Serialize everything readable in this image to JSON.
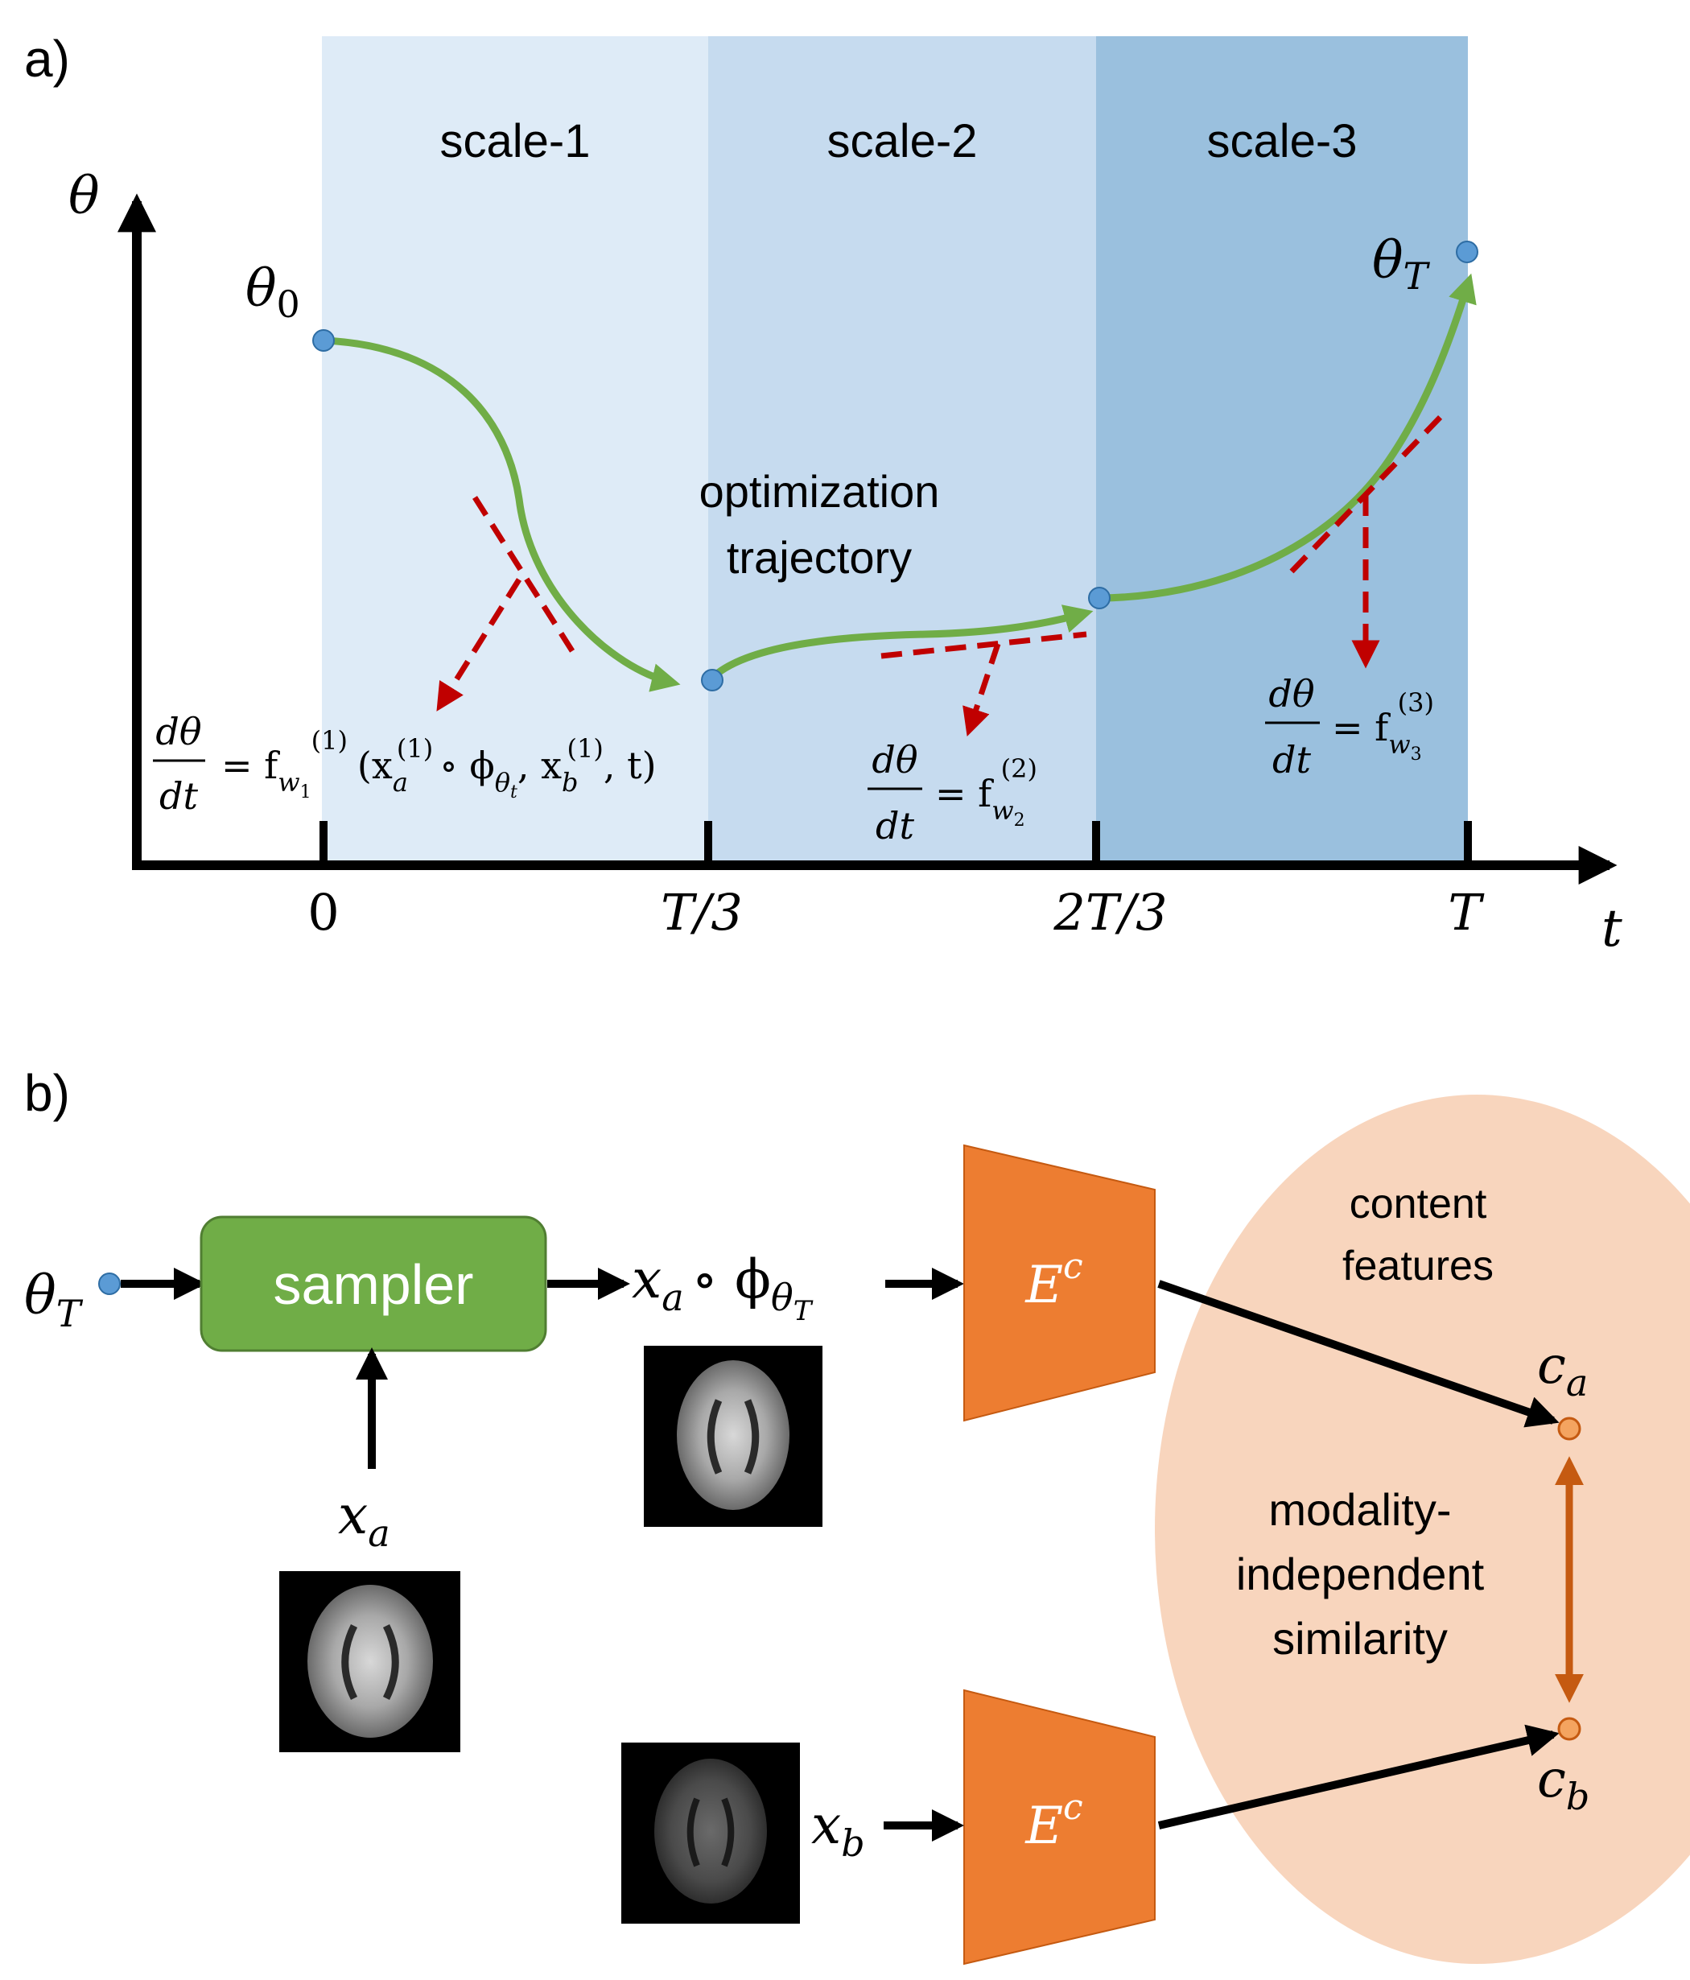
{
  "panel_a": {
    "label": "a)",
    "scales": [
      "scale-1",
      "scale-2",
      "scale-3"
    ],
    "y_axis_label": "θ",
    "x_axis_label": "t",
    "ticks": [
      "0",
      "T/3",
      "2T/3",
      "T"
    ],
    "theta0": {
      "base": "θ",
      "sub": "0"
    },
    "thetaT": {
      "base": "θ",
      "sub": "T"
    },
    "trajectory_label": [
      "optimization",
      "trajectory"
    ],
    "eq1": {
      "num": "dθ",
      "den": "dt",
      "eq": "= f",
      "sub": "w",
      "subsub": "1",
      "sup": "(1)",
      "args": "(x",
      "a_sub": "a",
      "a_sup": "(1)",
      "circ": "∘ ϕ",
      "phi_sub": "θ",
      "phi_subsub": "t",
      "comma_xb": ", x",
      "b_sub": "b",
      "b_sup": "(1)",
      "tail": ", t)"
    },
    "eq2": {
      "num": "dθ",
      "den": "dt",
      "eq": "= f",
      "sub": "w",
      "subsub": "2",
      "sup": "(2)"
    },
    "eq3": {
      "num": "dθ",
      "den": "dt",
      "eq": "= f",
      "sub": "w",
      "subsub": "3",
      "sup": "(3)"
    }
  },
  "panel_b": {
    "label": "b)",
    "thetaT": {
      "base": "θ",
      "sub": "T"
    },
    "sampler_label": "sampler",
    "xa": {
      "base": "x",
      "sub": "a"
    },
    "warped": {
      "x": "x",
      "x_sub": "a",
      "op": "∘ ϕ",
      "phi_sub": "θ",
      "phi_subsub": "T"
    },
    "xb": {
      "base": "x",
      "sub": "b"
    },
    "encoder_label": {
      "base": "E",
      "sup": "c"
    },
    "content_features": [
      "content",
      "features"
    ],
    "ca": {
      "base": "c",
      "sub": "a"
    },
    "cb": {
      "base": "c",
      "sub": "b"
    },
    "similarity": [
      "modality-",
      "independent",
      "similarity"
    ]
  },
  "colors": {
    "scale1": "#deebf7",
    "scale2": "#c6dbef",
    "scale3": "#9ac0de",
    "trajectory": "#70ad47",
    "point": "#5b9bd5",
    "tangent": "#c00000",
    "sampler": "#70ad47",
    "encoder": "#ed7d31",
    "feature_space": "#f8d5bd",
    "feature_point": "#f4a460",
    "similarity_arrow": "#c55a11"
  }
}
